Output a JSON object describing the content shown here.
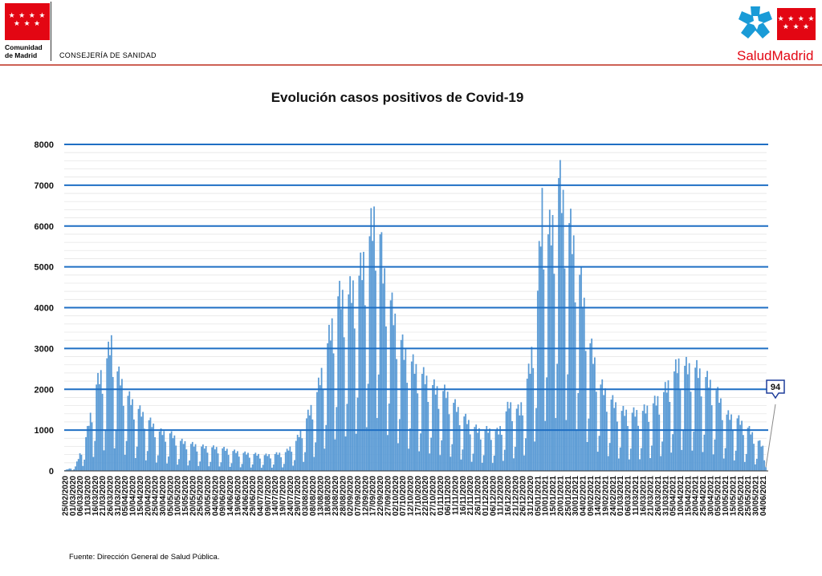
{
  "header": {
    "left_logo_lines": [
      "Comunidad",
      "de Madrid"
    ],
    "left_logo_stars": "★ ★ ★ ★\n★ ★ ★",
    "department": "CONSEJERÍA DE SANIDAD",
    "right_logo_text": "SaludMadrid",
    "brand_color": "#e30613"
  },
  "footer": {
    "source": "Fuente: Dirección General de Salud Pública."
  },
  "chart_data": {
    "type": "bar",
    "title": "Evolución casos positivos de Covid-19",
    "ylim": [
      0,
      8000
    ],
    "yticks": [
      0,
      1000,
      2000,
      3000,
      4000,
      5000,
      6000,
      7000,
      8000
    ],
    "grid": true,
    "bar_color": "#5b9bd5",
    "grid_color": "#1f6fc4",
    "x_start": "25/02/2020",
    "x_end": "06/06/2021",
    "x_labels": [
      "25/02/2020",
      "01/03/2020",
      "06/03/2020",
      "11/03/2020",
      "16/03/2020",
      "21/03/2020",
      "26/03/2020",
      "31/03/2020",
      "05/04/2020",
      "10/04/2020",
      "15/04/2020",
      "20/04/2020",
      "25/04/2020",
      "30/04/2020",
      "05/05/2020",
      "10/05/2020",
      "15/05/2020",
      "20/05/2020",
      "25/05/2020",
      "30/05/2020",
      "04/06/2020",
      "09/06/2020",
      "14/06/2020",
      "19/06/2020",
      "24/06/2020",
      "29/06/2020",
      "04/07/2020",
      "09/07/2020",
      "14/07/2020",
      "19/07/2020",
      "24/07/2020",
      "29/07/2020",
      "03/08/2020",
      "08/08/2020",
      "13/08/2020",
      "18/08/2020",
      "23/08/2020",
      "28/08/2020",
      "02/09/2020",
      "07/09/2020",
      "12/09/2020",
      "17/09/2020",
      "22/09/2020",
      "27/09/2020",
      "02/10/2020",
      "07/10/2020",
      "12/10/2020",
      "17/10/2020",
      "22/10/2020",
      "27/10/2020",
      "01/11/2020",
      "06/11/2020",
      "11/11/2020",
      "16/11/2020",
      "21/11/2020",
      "26/11/2020",
      "01/12/2020",
      "06/12/2020",
      "11/12/2020",
      "16/12/2020",
      "21/12/2020",
      "26/12/2020",
      "31/12/2020",
      "05/01/2021",
      "10/01/2021",
      "15/01/2021",
      "20/01/2021",
      "25/01/2021",
      "30/01/2021",
      "04/02/2021",
      "09/02/2021",
      "14/02/2021",
      "19/02/2021",
      "24/02/2021",
      "01/03/2021",
      "06/03/2021",
      "11/03/2021",
      "16/03/2021",
      "21/03/2021",
      "26/03/2021",
      "31/03/2021",
      "05/04/2021",
      "10/04/2021",
      "15/04/2021",
      "20/04/2021",
      "25/04/2021",
      "30/04/2021",
      "05/05/2021",
      "10/05/2021",
      "15/05/2021",
      "20/05/2021",
      "25/05/2021",
      "30/05/2021",
      "04/06/2021"
    ],
    "weekly_peaks": [
      [
        "2020-02-25",
        20
      ],
      [
        "2020-03-03",
        120
      ],
      [
        "2020-03-10",
        900
      ],
      [
        "2020-03-17",
        2300
      ],
      [
        "2020-03-24",
        3000
      ],
      [
        "2020-03-27",
        3500
      ],
      [
        "2020-03-31",
        2650
      ],
      [
        "2020-04-07",
        2000
      ],
      [
        "2020-04-14",
        1650
      ],
      [
        "2020-04-21",
        1350
      ],
      [
        "2020-04-28",
        1050
      ],
      [
        "2020-05-05",
        1000
      ],
      [
        "2020-05-12",
        800
      ],
      [
        "2020-05-19",
        720
      ],
      [
        "2020-05-26",
        650
      ],
      [
        "2020-06-02",
        630
      ],
      [
        "2020-06-09",
        600
      ],
      [
        "2020-06-16",
        530
      ],
      [
        "2020-06-23",
        480
      ],
      [
        "2020-06-30",
        450
      ],
      [
        "2020-07-07",
        420
      ],
      [
        "2020-07-14",
        450
      ],
      [
        "2020-07-21",
        500
      ],
      [
        "2020-07-28",
        800
      ],
      [
        "2020-08-04",
        1400
      ],
      [
        "2020-08-11",
        2100
      ],
      [
        "2020-08-18",
        3400
      ],
      [
        "2020-08-25",
        4650
      ],
      [
        "2020-09-01",
        4700
      ],
      [
        "2020-09-08",
        5200
      ],
      [
        "2020-09-15",
        6250
      ],
      [
        "2020-09-20",
        7200
      ],
      [
        "2020-09-24",
        5400
      ],
      [
        "2020-10-01",
        4200
      ],
      [
        "2020-10-08",
        3200
      ],
      [
        "2020-10-15",
        2800
      ],
      [
        "2020-10-22",
        2500
      ],
      [
        "2020-10-29",
        2200
      ],
      [
        "2020-11-05",
        2100
      ],
      [
        "2020-11-12",
        1700
      ],
      [
        "2020-11-19",
        1350
      ],
      [
        "2020-11-26",
        1100
      ],
      [
        "2020-12-03",
        1100
      ],
      [
        "2020-12-10",
        1050
      ],
      [
        "2020-12-17",
        1800
      ],
      [
        "2020-12-24",
        1600
      ],
      [
        "2020-12-31",
        2800
      ],
      [
        "2021-01-05",
        4800
      ],
      [
        "2021-01-08",
        7300
      ],
      [
        "2021-01-12",
        6300
      ],
      [
        "2021-01-15",
        6600
      ],
      [
        "2021-01-19",
        7800
      ],
      [
        "2021-01-22",
        7250
      ],
      [
        "2021-01-26",
        6600
      ],
      [
        "2021-01-30",
        5900
      ],
      [
        "2021-02-03",
        5000
      ],
      [
        "2021-02-09",
        3400
      ],
      [
        "2021-02-16",
        2300
      ],
      [
        "2021-02-23",
        1900
      ],
      [
        "2021-03-02",
        1600
      ],
      [
        "2021-03-09",
        1550
      ],
      [
        "2021-03-16",
        1600
      ],
      [
        "2021-03-23",
        1800
      ],
      [
        "2021-03-30",
        2100
      ],
      [
        "2021-04-06",
        2650
      ],
      [
        "2021-04-09",
        2900
      ],
      [
        "2021-04-13",
        2800
      ],
      [
        "2021-04-20",
        2750
      ],
      [
        "2021-04-27",
        2500
      ],
      [
        "2021-05-04",
        2150
      ],
      [
        "2021-05-11",
        1500
      ],
      [
        "2021-05-18",
        1400
      ],
      [
        "2021-05-25",
        1150
      ],
      [
        "2021-06-01",
        800
      ],
      [
        "2021-06-04",
        650
      ],
      [
        "2021-06-06",
        94
      ]
    ],
    "annotation": {
      "label": "94",
      "x": "2021-06-06",
      "y": 94
    }
  }
}
